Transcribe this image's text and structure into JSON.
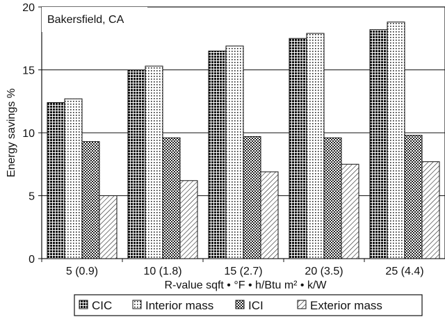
{
  "chart_data": {
    "type": "bar",
    "annotation": "Bakersfield, CA",
    "xlabel": "R-value sqft • °F • h/Btu m² • k/W",
    "ylabel": "Energy savings %",
    "categories": [
      "5 (0.9)",
      "10 (1.8)",
      "15 (2.7)",
      "20 (3.5)",
      "25 (4.4)"
    ],
    "ylim": [
      0,
      20
    ],
    "yticks": [
      0,
      5,
      10,
      15,
      20
    ],
    "grid": true,
    "legend_position": "bottom",
    "series": [
      {
        "name": "CIC",
        "pattern": "dense-checker",
        "values": [
          12.4,
          15.0,
          16.5,
          17.5,
          18.2
        ]
      },
      {
        "name": "Interior mass",
        "pattern": "light-dots",
        "values": [
          12.7,
          15.3,
          16.9,
          17.9,
          18.8
        ]
      },
      {
        "name": "ICI",
        "pattern": "medium-checker",
        "values": [
          9.3,
          9.6,
          9.7,
          9.6,
          9.8
        ]
      },
      {
        "name": "Exterior mass",
        "pattern": "diagonal-hatch",
        "values": [
          5.0,
          6.2,
          6.9,
          7.5,
          7.7
        ]
      }
    ]
  }
}
